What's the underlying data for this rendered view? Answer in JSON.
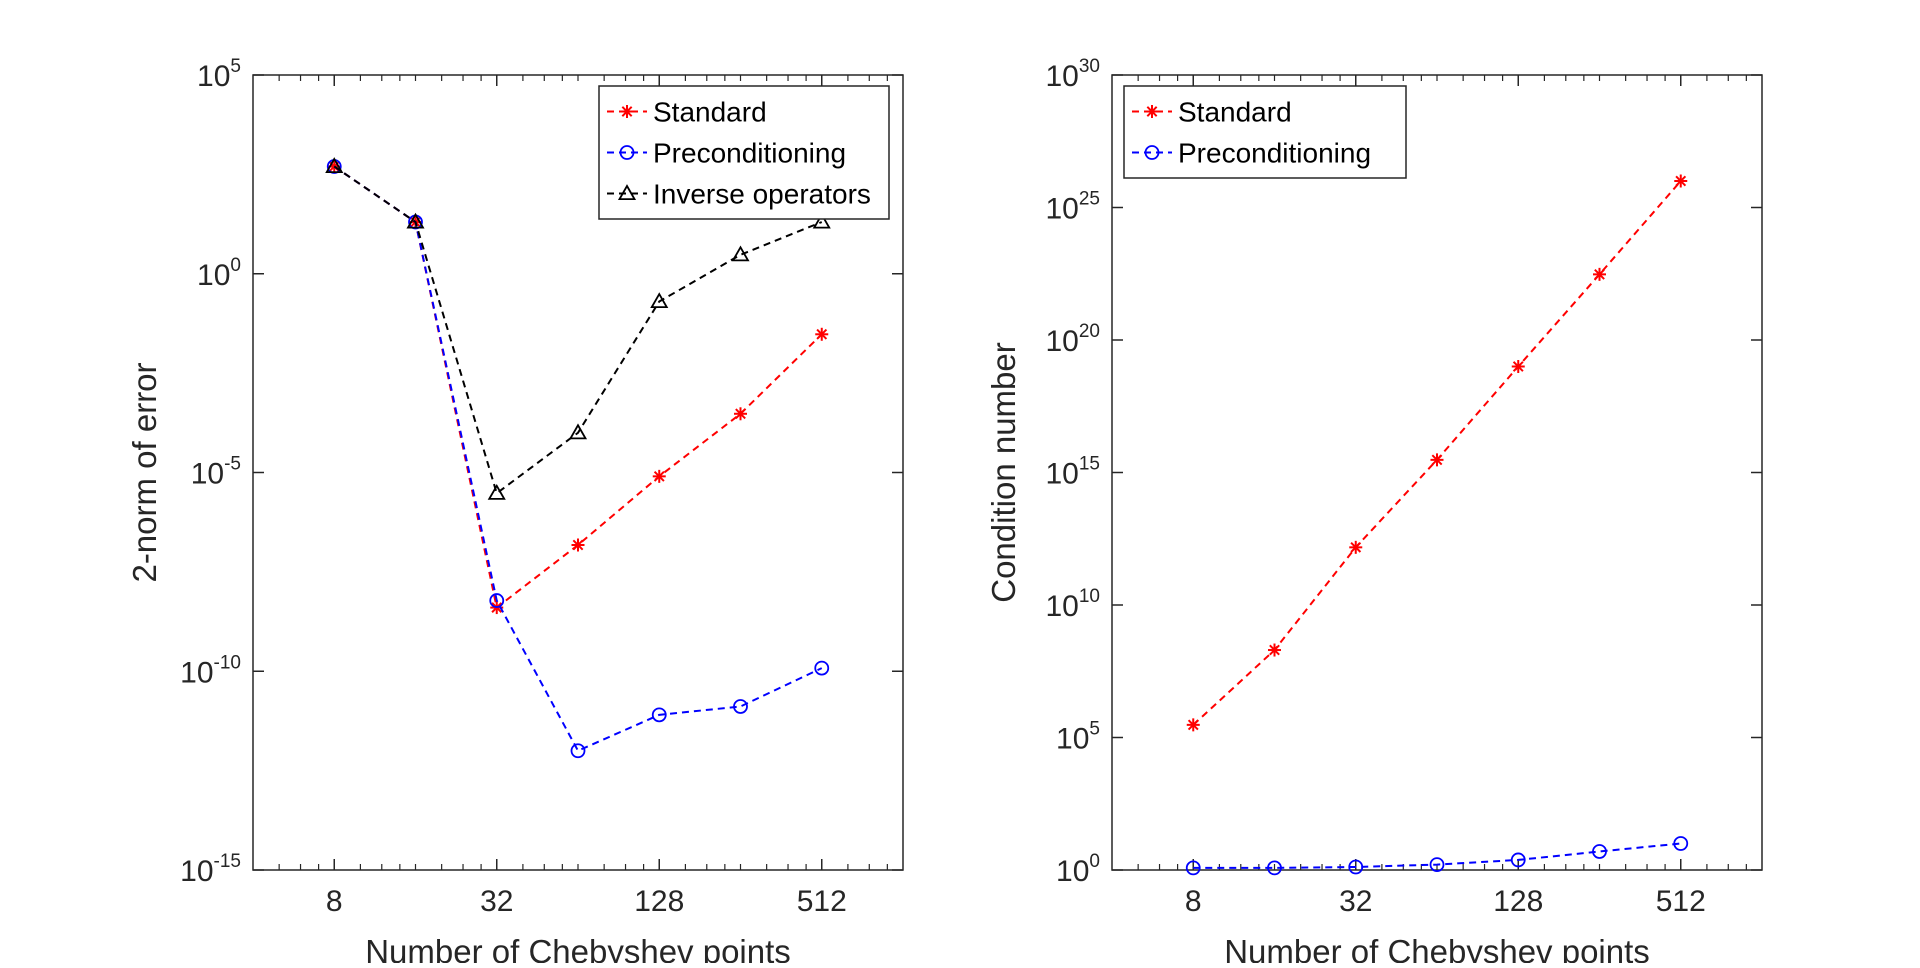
{
  "chart_data": [
    {
      "type": "line",
      "xlabel": "Number of Chebyshev points",
      "ylabel": "2-norm of error",
      "xscale": "log2",
      "yscale": "log10",
      "xlim": [
        4,
        1024
      ],
      "ylim_exp": [
        -15,
        5
      ],
      "xticks": [
        8,
        32,
        128,
        512
      ],
      "xtick_labels": [
        "8",
        "32",
        "128",
        "512"
      ],
      "yticks_exp": [
        -15,
        -10,
        -5,
        0,
        5
      ],
      "ytick_labels": [
        "10^-15",
        "10^-10",
        "10^-5",
        "10^0",
        "10^5"
      ],
      "grid": false,
      "legend_position": "top-right",
      "x": [
        8,
        16,
        32,
        64,
        128,
        256,
        512
      ],
      "series": [
        {
          "name": "Standard",
          "color": "#ff0000",
          "marker": "asterisk",
          "line": "dashed",
          "values": [
            500,
            20,
            4e-09,
            1.5e-07,
            8e-06,
            0.0003,
            0.03
          ]
        },
        {
          "name": "Preconditioning",
          "color": "#0000ff",
          "marker": "circle",
          "line": "dashed",
          "values": [
            500,
            20,
            6e-09,
            1e-12,
            8e-12,
            1.3e-11,
            1.2e-10
          ]
        },
        {
          "name": "Inverse operators",
          "color": "#000000",
          "marker": "triangle",
          "line": "dashed",
          "values": [
            500,
            20,
            3e-06,
            0.0001,
            0.2,
            3,
            20
          ]
        }
      ]
    },
    {
      "type": "line",
      "xlabel": "Number of Chebyshev points",
      "ylabel": "Condition number",
      "xscale": "log2",
      "yscale": "log10",
      "xlim": [
        4,
        1024
      ],
      "ylim_exp": [
        0,
        30
      ],
      "xticks": [
        8,
        32,
        128,
        512
      ],
      "xtick_labels": [
        "8",
        "32",
        "128",
        "512"
      ],
      "yticks_exp": [
        0,
        5,
        10,
        15,
        20,
        25,
        30
      ],
      "ytick_labels": [
        "10^0",
        "10^5",
        "10^10",
        "10^15",
        "10^20",
        "10^25",
        "10^30"
      ],
      "grid": false,
      "legend_position": "top-left",
      "x": [
        8,
        16,
        32,
        64,
        128,
        256,
        512
      ],
      "series": [
        {
          "name": "Standard",
          "color": "#ff0000",
          "marker": "asterisk",
          "line": "dashed",
          "values": [
            300000.0,
            200000000.0,
            1500000000000.0,
            3000000000000000.0,
            1e+19,
            3e+22,
            1e+26
          ]
        },
        {
          "name": "Preconditioning",
          "color": "#0000ff",
          "marker": "circle",
          "line": "dashed",
          "values": [
            1.2,
            1.2,
            1.3,
            1.6,
            2.4,
            5,
            10
          ]
        }
      ]
    }
  ]
}
